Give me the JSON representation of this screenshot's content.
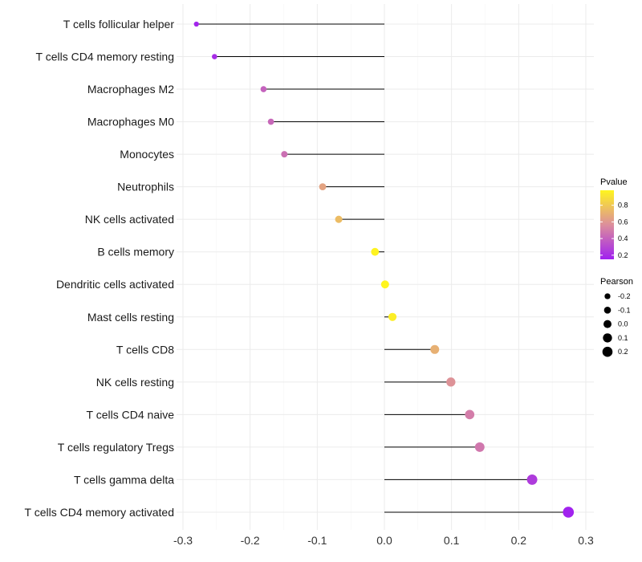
{
  "chart_data": {
    "type": "lollipop",
    "title": "",
    "xlabel": "",
    "ylabel": "",
    "xlim": [
      -0.3,
      0.3
    ],
    "xticks": [
      -0.3,
      -0.2,
      -0.1,
      0.0,
      0.1,
      0.2,
      0.3
    ],
    "xtick_labels": [
      "-0.3",
      "-0.2",
      "-0.1",
      "0.0",
      "0.1",
      "0.2",
      "0.3"
    ],
    "grid": true,
    "categories": [
      "T cells follicular helper",
      "T cells CD4 memory resting",
      "Macrophages M2",
      "Macrophages M0",
      "Monocytes",
      "Neutrophils",
      "NK cells activated",
      "B cells memory",
      "Dendritic cells activated",
      "Mast cells resting",
      "T cells CD8",
      "NK cells resting",
      "T cells CD4 naive",
      "T cells regulatory  Tregs ",
      "T cells gamma delta",
      "T cells CD4 memory activated"
    ],
    "pearson": [
      -0.28,
      -0.253,
      -0.18,
      -0.169,
      -0.149,
      -0.092,
      -0.068,
      -0.014,
      0.001,
      0.012,
      0.075,
      0.099,
      0.127,
      0.142,
      0.22,
      0.274
    ],
    "pvalue": [
      0.17,
      0.2,
      0.4,
      0.42,
      0.45,
      0.65,
      0.75,
      0.97,
      0.99,
      0.95,
      0.7,
      0.58,
      0.5,
      0.48,
      0.25,
      0.16
    ],
    "color_legend": {
      "title": "Pvalue",
      "range": [
        0.15,
        0.98
      ],
      "ticks": [
        "0.8",
        "0.6",
        "0.4",
        "0.2"
      ],
      "tick_values": [
        0.8,
        0.6,
        0.4,
        0.2
      ],
      "colors": [
        "#A020F0",
        "#DC8E9C",
        "#FFF51E"
      ]
    },
    "size_legend": {
      "title": "Pearson",
      "labels": [
        "-0.2",
        "-0.1",
        "0.0",
        "0.1",
        "0.2"
      ],
      "values": [
        -0.2,
        -0.1,
        0.0,
        0.1,
        0.2
      ]
    },
    "legend_position": "right"
  }
}
